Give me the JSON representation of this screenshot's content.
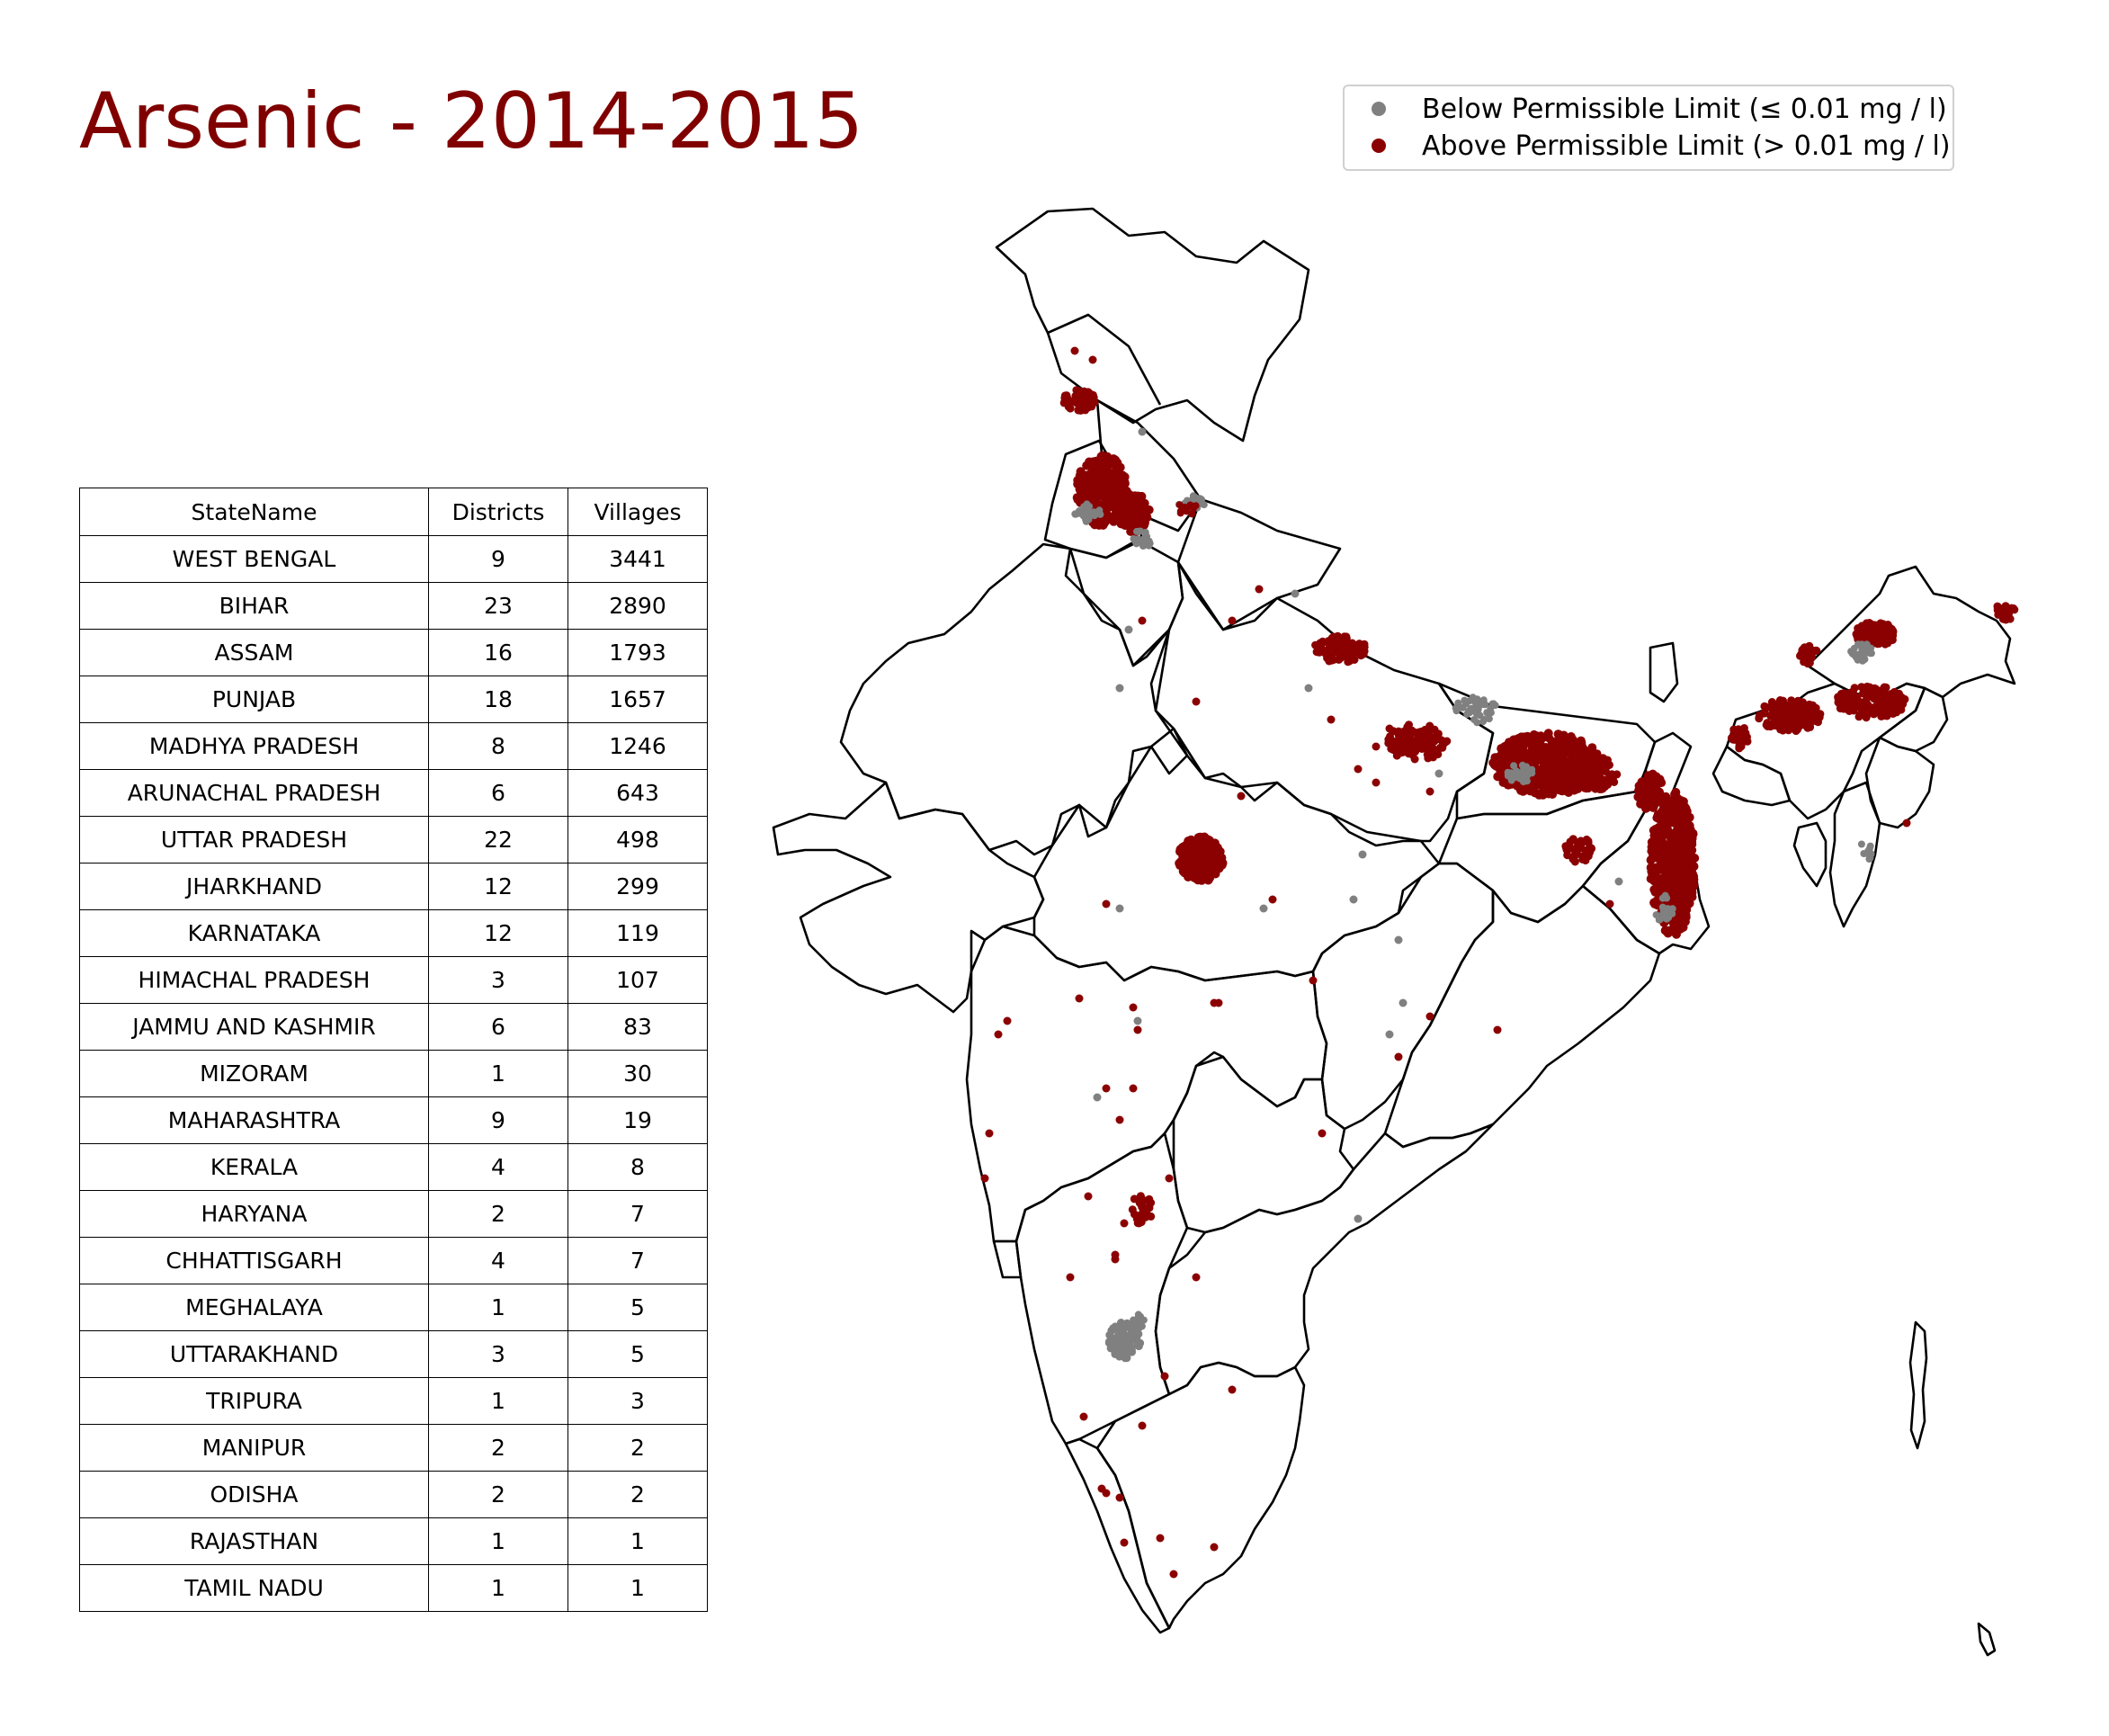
{
  "title": "Arsenic - 2014-2015",
  "legend": [
    {
      "label": "Below Permissible Limit (≤ 0.01 mg / l)",
      "color": "#808080"
    },
    {
      "label": "Above Permissible Limit (> 0.01 mg / l)",
      "color": "#8b0000"
    }
  ],
  "table": {
    "headers": [
      "StateName",
      "Districts",
      "Villages"
    ],
    "rows": [
      [
        "WEST BENGAL",
        "9",
        "3441"
      ],
      [
        "BIHAR",
        "23",
        "2890"
      ],
      [
        "ASSAM",
        "16",
        "1793"
      ],
      [
        "PUNJAB",
        "18",
        "1657"
      ],
      [
        "MADHYA PRADESH",
        "8",
        "1246"
      ],
      [
        "ARUNACHAL PRADESH",
        "6",
        "643"
      ],
      [
        "UTTAR PRADESH",
        "22",
        "498"
      ],
      [
        "JHARKHAND",
        "12",
        "299"
      ],
      [
        "KARNATAKA",
        "12",
        "119"
      ],
      [
        "HIMACHAL PRADESH",
        "3",
        "107"
      ],
      [
        "JAMMU AND KASHMIR",
        "6",
        "83"
      ],
      [
        "MIZORAM",
        "1",
        "30"
      ],
      [
        "MAHARASHTRA",
        "9",
        "19"
      ],
      [
        "KERALA",
        "4",
        "8"
      ],
      [
        "HARYANA",
        "2",
        "7"
      ],
      [
        "CHHATTISGARH",
        "4",
        "7"
      ],
      [
        "MEGHALAYA",
        "1",
        "5"
      ],
      [
        "UTTARAKHAND",
        "3",
        "5"
      ],
      [
        "TRIPURA",
        "1",
        "3"
      ],
      [
        "MANIPUR",
        "2",
        "2"
      ],
      [
        "ODISHA",
        "2",
        "2"
      ],
      [
        "RAJASTHAN",
        "1",
        "1"
      ],
      [
        "TAMIL NADU",
        "1",
        "1"
      ]
    ]
  },
  "map": {
    "outline_color": "#000000",
    "below_color": "#808080",
    "above_color": "#8b0000"
  }
}
